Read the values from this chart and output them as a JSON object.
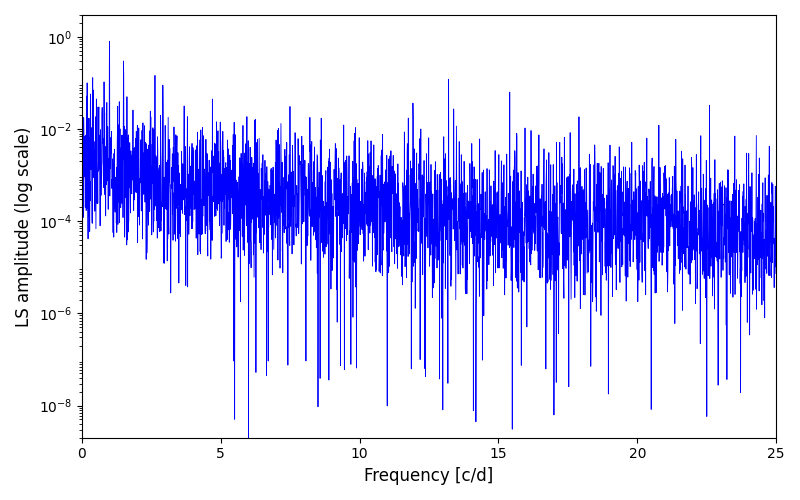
{
  "title": "",
  "xlabel": "Frequency [c/d]",
  "ylabel": "LS amplitude (log scale)",
  "line_color": "blue",
  "line_width": 0.6,
  "xlim": [
    0,
    25
  ],
  "ylim_low": 2e-09,
  "ylim_high": 3.0,
  "yscale": "log",
  "yticks": [
    1e-08,
    1e-06,
    0.0001,
    0.01,
    1.0
  ],
  "xticks": [
    0,
    5,
    10,
    15,
    20,
    25
  ],
  "figsize": [
    8.0,
    5.0
  ],
  "dpi": 100,
  "background_color": "#ffffff",
  "seed": 7,
  "n_points": 3000,
  "freq_max": 25.0
}
